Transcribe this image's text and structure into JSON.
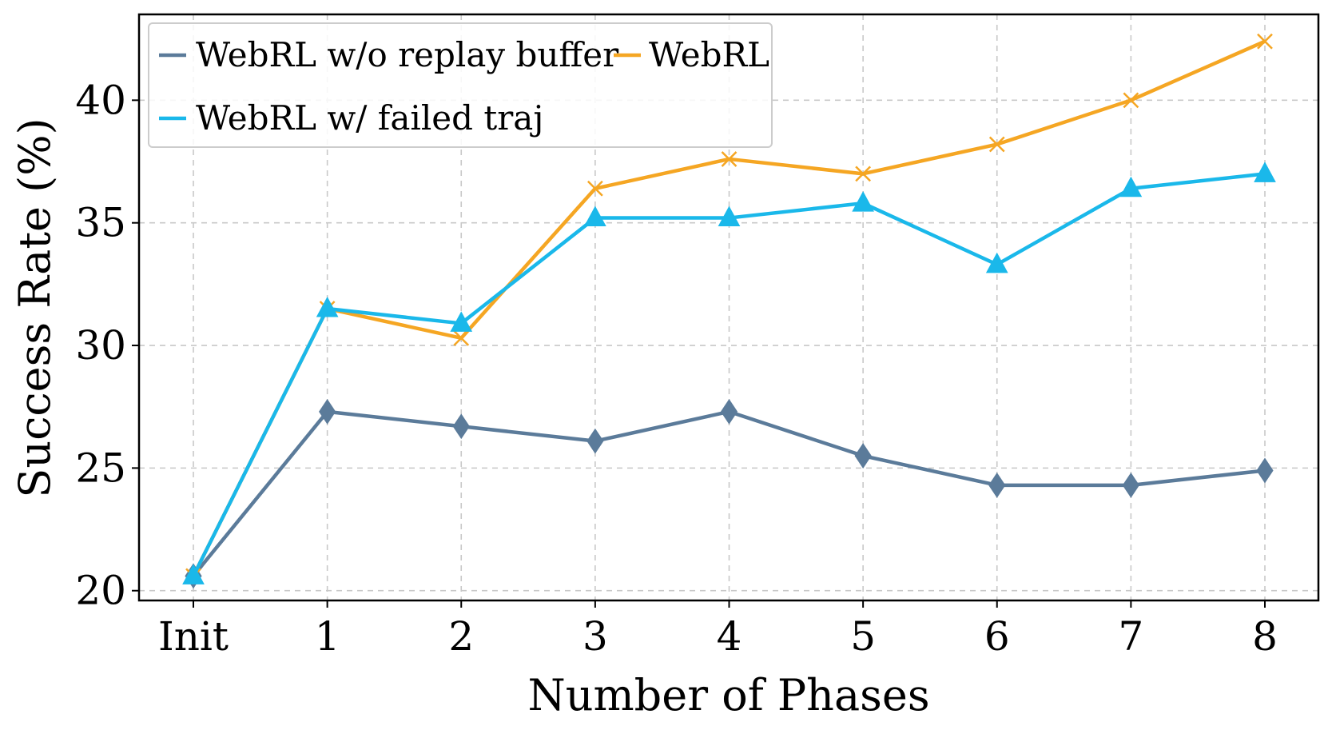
{
  "chart_data": {
    "type": "line",
    "title": "",
    "xlabel": "Number of Phases",
    "ylabel": "Success Rate (%)",
    "categories": [
      "Init",
      "1",
      "2",
      "3",
      "4",
      "5",
      "6",
      "7",
      "8"
    ],
    "ylim": [
      19.6,
      43.5
    ],
    "yticks": [
      20,
      25,
      30,
      35,
      40
    ],
    "grid": true,
    "legend_position": "top-left",
    "series": [
      {
        "name": "WebRL w/o replay buffer",
        "color": "#5b7b9a",
        "marker": "diamond",
        "values": [
          20.6,
          27.3,
          26.7,
          26.1,
          27.3,
          25.5,
          24.3,
          24.3,
          24.9
        ]
      },
      {
        "name": "WebRL",
        "color": "#f5a623",
        "marker": "x",
        "values": [
          20.6,
          31.5,
          30.3,
          36.4,
          37.6,
          37.0,
          38.2,
          40.0,
          42.4
        ]
      },
      {
        "name": "WebRL w/ failed traj",
        "color": "#1ab8ea",
        "marker": "triangle",
        "values": [
          20.6,
          31.5,
          30.9,
          35.2,
          35.2,
          35.8,
          33.3,
          36.4,
          37.0
        ]
      }
    ]
  }
}
